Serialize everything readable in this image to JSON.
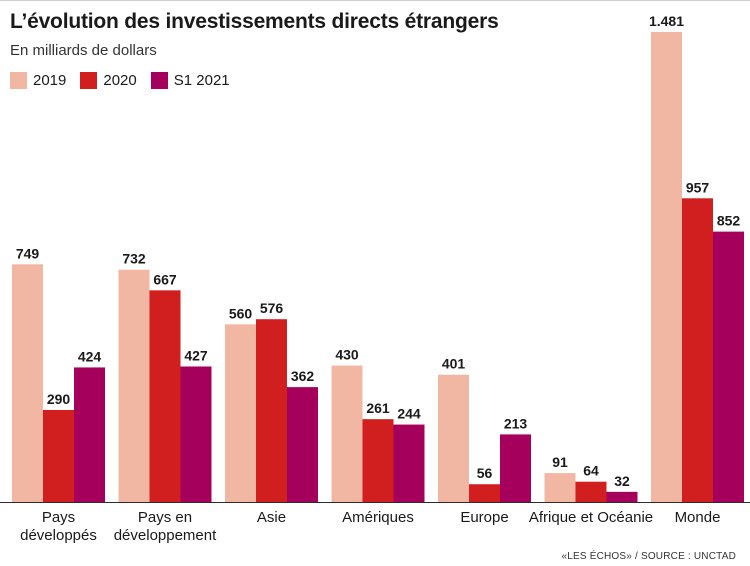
{
  "chart_data": {
    "type": "bar",
    "title": "L’évolution des investissements directs étrangers",
    "subtitle": "En milliards de dollars",
    "categories": [
      [
        "Pays",
        "développés"
      ],
      [
        "Pays en",
        "développement"
      ],
      [
        "Asie"
      ],
      [
        "Amériques"
      ],
      [
        "Europe"
      ],
      [
        "Afrique et Océanie"
      ],
      [
        "Monde"
      ]
    ],
    "series": [
      {
        "name": "2019",
        "color": "#f2b7a3",
        "values": [
          749,
          732,
          560,
          430,
          401,
          91,
          1481
        ],
        "labels": [
          "749",
          "732",
          "560",
          "430",
          "401",
          "91",
          "1.481"
        ]
      },
      {
        "name": "2020",
        "color": "#d11f1f",
        "values": [
          290,
          667,
          576,
          261,
          56,
          64,
          957
        ],
        "labels": [
          "290",
          "667",
          "576",
          "261",
          "56",
          "64",
          "957"
        ]
      },
      {
        "name": "S1 2021",
        "color": "#a5005c",
        "values": [
          424,
          427,
          362,
          244,
          213,
          32,
          852
        ],
        "labels": [
          "424",
          "427",
          "362",
          "244",
          "213",
          "32",
          "852"
        ]
      }
    ],
    "ylim": [
      0,
      1481
    ],
    "grid": false,
    "legend_position": "top-left"
  },
  "source": "«LES ÉCHOS» / SOURCE : UNCTAD"
}
